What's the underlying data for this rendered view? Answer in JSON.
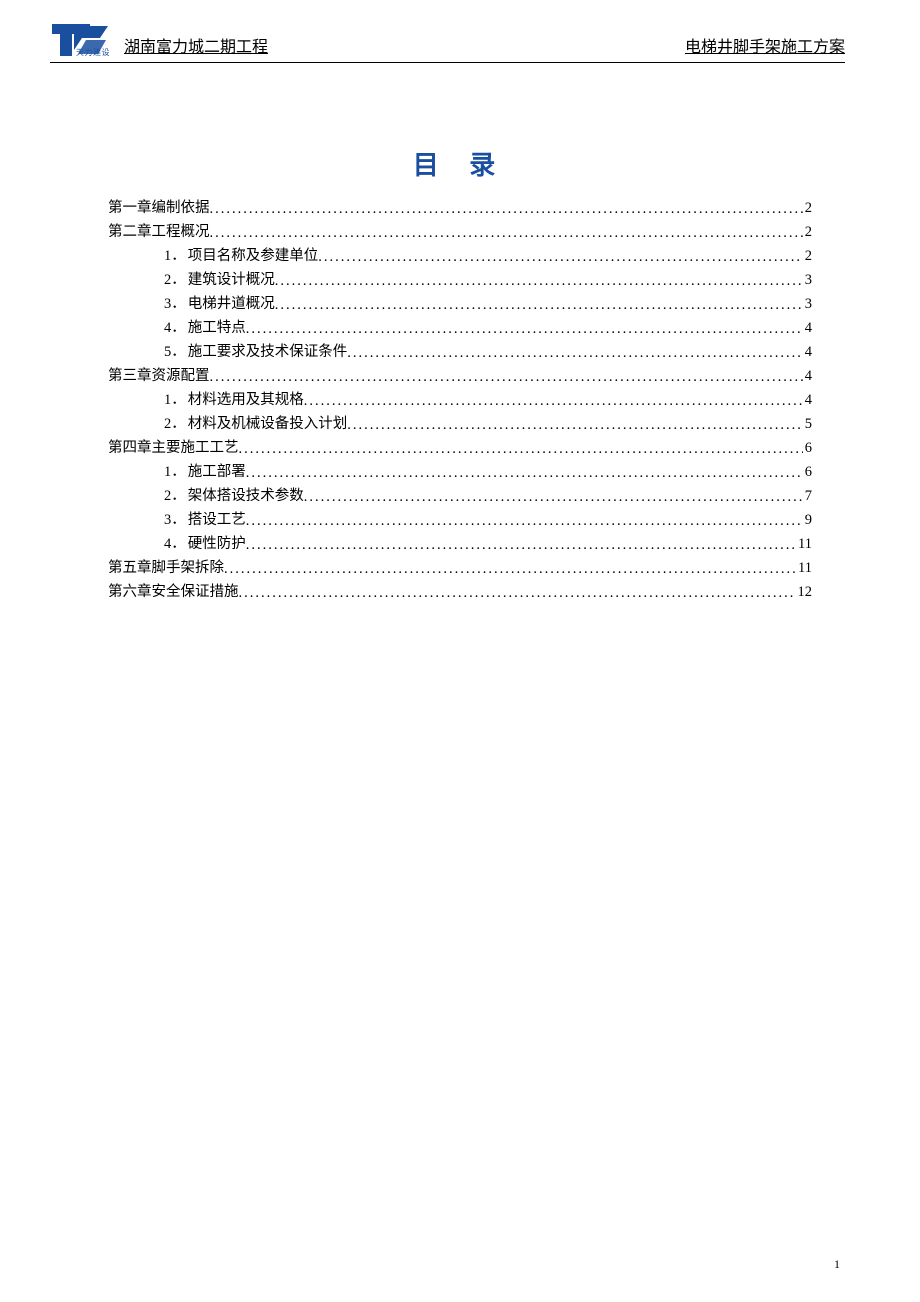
{
  "header": {
    "logo_text": "天力建设",
    "left_title": "湖南富力城二期工程",
    "right_title": "电梯井脚手架施工方案"
  },
  "toc": {
    "title": "目 录",
    "entries": [
      {
        "level": 1,
        "prefix": "第一章 ",
        "text": "编制依据",
        "page": "2"
      },
      {
        "level": 1,
        "prefix": "第二章 ",
        "text": "工程概况",
        "page": "2"
      },
      {
        "level": 2,
        "num": "1．",
        "text": "项目名称及参建单位",
        "page": "2"
      },
      {
        "level": 2,
        "num": "2．",
        "text": "建筑设计概况",
        "page": "3"
      },
      {
        "level": 2,
        "num": "3．",
        "text": "电梯井道概况",
        "page": "3"
      },
      {
        "level": 2,
        "num": "4．",
        "text": "施工特点",
        "page": "4"
      },
      {
        "level": 2,
        "num": "5．",
        "text": "施工要求及技术保证条件",
        "page": "4"
      },
      {
        "level": 1,
        "prefix": "第三章 ",
        "text": "资源配置",
        "page": "4"
      },
      {
        "level": 2,
        "num": "1．",
        "text": "材料选用及其规格",
        "page": "4"
      },
      {
        "level": 2,
        "num": "2．",
        "text": "材料及机械设备投入计划",
        "page": "5"
      },
      {
        "level": 1,
        "prefix": "第四章 ",
        "text": "主要施工工艺",
        "page": "6"
      },
      {
        "level": 2,
        "num": "1．",
        "text": "施工部署",
        "page": "6"
      },
      {
        "level": 2,
        "num": "2．",
        "text": "架体搭设技术参数",
        "page": "7"
      },
      {
        "level": 2,
        "num": "3．",
        "text": "搭设工艺",
        "page": "9"
      },
      {
        "level": 2,
        "num": "4．",
        "text": "硬性防护",
        "page": " 11"
      },
      {
        "level": 1,
        "prefix": "第五章 ",
        "text": "脚手架拆除",
        "page": " 11"
      },
      {
        "level": 1,
        "prefix": "第六章 ",
        "text": "安全保证措施",
        "page": "12"
      }
    ]
  },
  "page_number": "1",
  "colors": {
    "title_color": "#1a4fa0",
    "text_color": "#000000",
    "background": "#ffffff"
  },
  "fonts": {
    "body": "SimSun",
    "title_size": 26,
    "entry_size": 14.5,
    "header_size": 16
  }
}
